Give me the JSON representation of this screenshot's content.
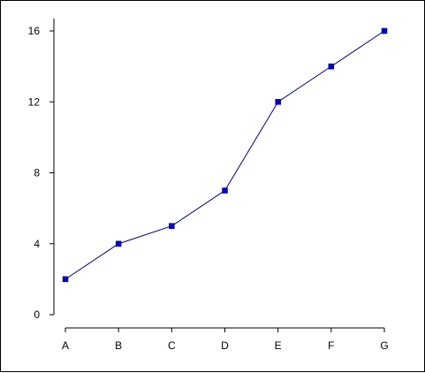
{
  "chart_data": {
    "type": "line",
    "title": "",
    "xlabel": "",
    "ylabel": "",
    "categories": [
      "A",
      "B",
      "C",
      "D",
      "E",
      "F",
      "G"
    ],
    "series": [
      {
        "values": [
          2,
          4,
          5,
          7,
          12,
          14,
          16
        ]
      }
    ],
    "ylim": [
      0,
      16
    ],
    "yticks": [
      0,
      4,
      8,
      12,
      16
    ],
    "grid": false,
    "legend": "none",
    "colors": {
      "line": "#000080",
      "marker": "#0000cc",
      "axis": "#000000",
      "background": "#ffffff"
    }
  }
}
